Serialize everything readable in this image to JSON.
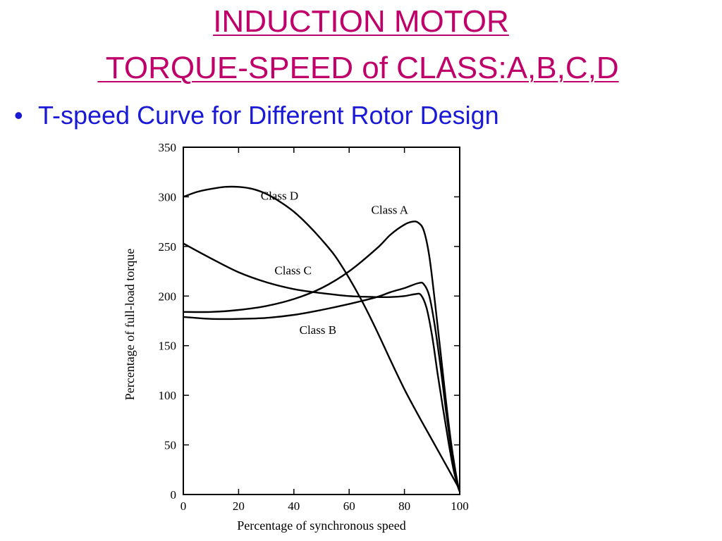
{
  "slide": {
    "title_line1": "INDUCTION MOTOR",
    "title_line2": " TORQUE-SPEED of CLASS:A,B,C,D",
    "bullet": "T-speed Curve for Different Rotor Design",
    "title_color": "#c0006a",
    "bullet_color": "#1a1ad6",
    "bullet_symbol": "•"
  },
  "chart_data": {
    "type": "line",
    "title": "",
    "xlabel": "Percentage of synchronous speed",
    "ylabel": "Percentage of full-load torque",
    "xlim": [
      0,
      100
    ],
    "ylim": [
      0,
      350
    ],
    "xticks": [
      0,
      20,
      40,
      60,
      80,
      100
    ],
    "yticks": [
      0,
      50,
      100,
      150,
      200,
      250,
      300,
      350
    ],
    "grid": false,
    "series": [
      {
        "name": "Class A",
        "x": [
          0,
          10,
          20,
          30,
          40,
          50,
          60,
          70,
          75,
          80,
          83,
          85,
          87,
          89,
          91,
          93,
          95,
          97,
          99,
          100
        ],
        "y": [
          184,
          184,
          186,
          190,
          197,
          208,
          225,
          248,
          262,
          272,
          275,
          274,
          266,
          240,
          195,
          145,
          95,
          50,
          15,
          3
        ]
      },
      {
        "name": "Class B",
        "x": [
          0,
          10,
          20,
          30,
          40,
          50,
          60,
          70,
          75,
          80,
          85,
          87,
          89,
          91,
          93,
          95,
          97,
          99,
          100
        ],
        "y": [
          179,
          177,
          177,
          178,
          181,
          186,
          192,
          199,
          204,
          208,
          213,
          212,
          200,
          170,
          130,
          85,
          45,
          12,
          3
        ]
      },
      {
        "name": "Class C",
        "x": [
          0,
          10,
          20,
          30,
          40,
          50,
          60,
          70,
          75,
          80,
          84,
          86,
          88,
          90,
          92,
          94,
          96,
          98,
          100
        ],
        "y": [
          253,
          238,
          224,
          214,
          207,
          203,
          200,
          199,
          199,
          200,
          202,
          201,
          188,
          160,
          122,
          86,
          52,
          22,
          3
        ]
      },
      {
        "name": "Class D",
        "x": [
          0,
          5,
          10,
          15,
          20,
          25,
          30,
          35,
          40,
          45,
          50,
          55,
          60,
          65,
          70,
          75,
          80,
          85,
          90,
          95,
          100
        ],
        "y": [
          300,
          305,
          308,
          310,
          310,
          308,
          303,
          295,
          285,
          272,
          257,
          240,
          218,
          193,
          165,
          135,
          106,
          80,
          55,
          30,
          5
        ]
      }
    ],
    "annotations": [
      {
        "text": "Class D",
        "series": "Class D"
      },
      {
        "text": "Class A",
        "series": "Class A"
      },
      {
        "text": "Class C",
        "series": "Class C"
      },
      {
        "text": "Class B",
        "series": "Class B"
      }
    ]
  }
}
